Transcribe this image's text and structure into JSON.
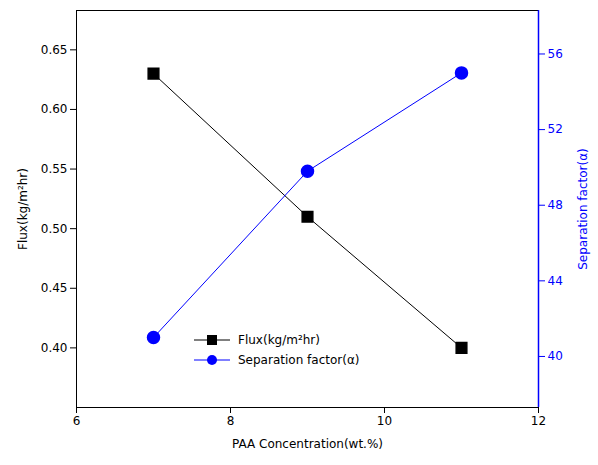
{
  "chart_data": {
    "type": "line",
    "xlabel": "PAA Concentration(wt.%)",
    "ylabel": "Flux(kg/m²hr)",
    "y2label": "Separation factor(α)",
    "x": [
      7,
      9,
      11
    ],
    "series": [
      {
        "name": "Flux(kg/m²hr)",
        "color": "#000000",
        "marker": "square",
        "values": [
          0.63,
          0.51,
          0.4
        ]
      },
      {
        "name": "Separation factor(α)",
        "color": "#0000ff",
        "marker": "circle",
        "axis": "y2",
        "values": [
          41.0,
          49.8,
          55.0
        ]
      }
    ],
    "xlim": [
      6,
      12
    ],
    "xticks": [
      6,
      8,
      10,
      12
    ],
    "ylim": [
      0.35,
      0.683
    ],
    "yticks": [
      {
        "value": 0.4,
        "label": "0.40"
      },
      0.45,
      {
        "value": 0.5,
        "label": "0.50"
      },
      0.55,
      {
        "value": 0.6,
        "label": "0.60"
      },
      0.65
    ],
    "y2lim": [
      37.3,
      58.3
    ],
    "y2ticks": [
      40,
      44,
      48,
      52,
      56
    ],
    "legend": "lower center"
  }
}
